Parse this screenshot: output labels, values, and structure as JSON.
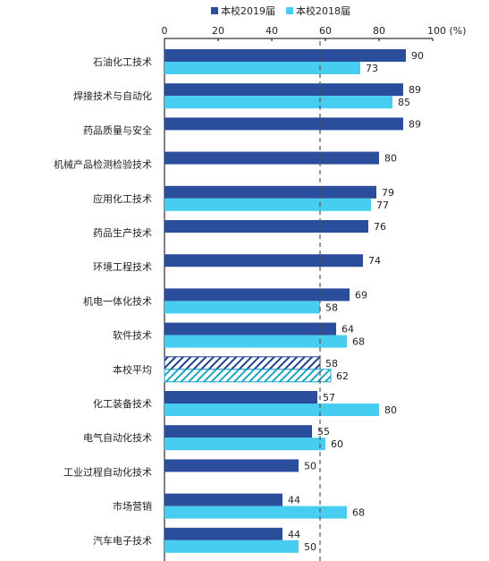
{
  "colors": {
    "series_2019": "#2a4d9c",
    "series_2018": "#46cdf0",
    "average_2019": "#1f3f8a",
    "average_2018": "#1aa5c4",
    "reference_line": "#555555",
    "axis": "#000000",
    "text": "#222222"
  },
  "chart_data": {
    "type": "bar",
    "orientation": "horizontal",
    "xlim": [
      0,
      100
    ],
    "x_ticks": [
      0,
      20,
      40,
      60,
      80
    ],
    "x_tick_last_label": "100 (%)",
    "reference_line": 58,
    "reference_line_style": "dashed",
    "grid": false,
    "legend_position": "top",
    "hatched_category": "本校平均",
    "categories": [
      "石油化工技术",
      "焊接技术与自动化",
      "药品质量与安全",
      "机械产品检测检验技术",
      "应用化工技术",
      "药品生产技术",
      "环境工程技术",
      "机电一体化技术",
      "软件技术",
      "本校平均",
      "化工装备技术",
      "电气自动化技术",
      "工业过程自动化技术",
      "市场营销",
      "汽车电子技术"
    ],
    "series": [
      {
        "name": "本校2019届",
        "values": [
          90,
          89,
          89,
          80,
          79,
          76,
          74,
          69,
          64,
          58,
          57,
          55,
          50,
          44,
          44
        ]
      },
      {
        "name": "本校2018届",
        "values": [
          73,
          85,
          null,
          null,
          77,
          null,
          null,
          58,
          68,
          62,
          80,
          60,
          null,
          68,
          50
        ]
      }
    ]
  }
}
